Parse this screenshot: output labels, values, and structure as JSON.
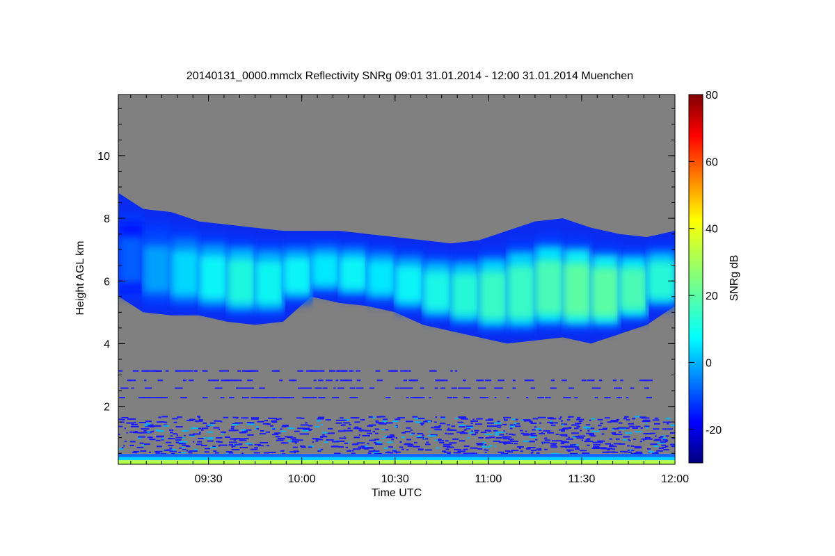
{
  "chart_data": {
    "type": "heatmap",
    "title": "20140131_0000.mmclx Reflectivity SNRg   09:01 31.01.2014 - 12:00 31.01.2014 Muenchen",
    "xlabel": "Time UTC",
    "ylabel": "Height AGL km",
    "x_tick_labels": [
      "09:30",
      "10:00",
      "10:30",
      "11:00",
      "11:30",
      "12:00"
    ],
    "x_ticks_hours": [
      9.5,
      10.0,
      10.5,
      11.0,
      11.5,
      12.0
    ],
    "xlim_hours": [
      9.0167,
      12.0
    ],
    "y_tick_labels": [
      "2",
      "4",
      "6",
      "8",
      "10"
    ],
    "y_ticks": [
      2,
      4,
      6,
      8,
      10
    ],
    "ylim": [
      0.15,
      11.95
    ],
    "colorbar": {
      "label": "SNRg dB",
      "tick_labels": [
        "-20",
        "0",
        "20",
        "40",
        "60",
        "80"
      ],
      "ticks": [
        -20,
        0,
        20,
        40,
        60,
        80
      ],
      "range": [
        -30,
        80
      ],
      "colormap": "jet"
    },
    "background_color": "#808080",
    "cloud_layer": {
      "time_hours": [
        9.02,
        9.15,
        9.3,
        9.45,
        9.6,
        9.75,
        9.9,
        10.05,
        10.2,
        10.35,
        10.5,
        10.65,
        10.8,
        10.95,
        11.1,
        11.25,
        11.4,
        11.55,
        11.7,
        11.85,
        12.0
      ],
      "top_km": [
        8.8,
        8.3,
        8.2,
        7.9,
        7.8,
        7.7,
        7.6,
        7.6,
        7.6,
        7.5,
        7.4,
        7.3,
        7.2,
        7.3,
        7.6,
        7.9,
        8.0,
        7.7,
        7.5,
        7.4,
        7.6
      ],
      "base_km": [
        5.5,
        5.0,
        4.9,
        4.9,
        4.7,
        4.6,
        4.7,
        5.5,
        5.3,
        5.2,
        5.0,
        4.6,
        4.4,
        4.2,
        4.0,
        4.1,
        4.2,
        4.0,
        4.3,
        4.6,
        5.2
      ],
      "peak_snr_db": [
        -5,
        2,
        8,
        12,
        15,
        13,
        12,
        10,
        12,
        10,
        12,
        14,
        16,
        18,
        18,
        20,
        22,
        22,
        20,
        16,
        10
      ]
    },
    "ground_clutter_top_km": 1.7
  }
}
